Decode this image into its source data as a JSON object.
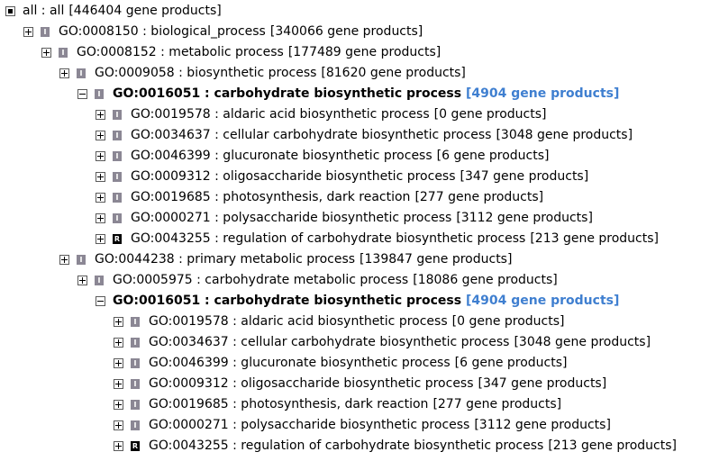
{
  "tree": [
    {
      "depth": 0,
      "toggle": "open",
      "relation": "",
      "label": "all : all",
      "count": "[446404 gene products]",
      "bold": false
    },
    {
      "depth": 1,
      "toggle": "closed",
      "relation": "I",
      "label": "GO:0008150 : biological_process",
      "count": "[340066 gene products]",
      "bold": false
    },
    {
      "depth": 2,
      "toggle": "closed",
      "relation": "I",
      "label": "GO:0008152 : metabolic process",
      "count": "[177489 gene products]",
      "bold": false
    },
    {
      "depth": 3,
      "toggle": "closed",
      "relation": "I",
      "label": "GO:0009058 : biosynthetic process",
      "count": "[81620 gene products]",
      "bold": false
    },
    {
      "depth": 4,
      "toggle": "open",
      "relation": "I",
      "label": "GO:0016051 : carbohydrate biosynthetic process",
      "count": "[4904 gene products]",
      "bold": true
    },
    {
      "depth": 5,
      "toggle": "closed",
      "relation": "I",
      "label": "GO:0019578 : aldaric acid biosynthetic process",
      "count": "[0 gene products]",
      "bold": false
    },
    {
      "depth": 5,
      "toggle": "closed",
      "relation": "I",
      "label": "GO:0034637 : cellular carbohydrate biosynthetic process",
      "count": "[3048 gene products]",
      "bold": false
    },
    {
      "depth": 5,
      "toggle": "closed",
      "relation": "I",
      "label": "GO:0046399 : glucuronate biosynthetic process",
      "count": "[6 gene products]",
      "bold": false
    },
    {
      "depth": 5,
      "toggle": "closed",
      "relation": "I",
      "label": "GO:0009312 : oligosaccharide biosynthetic process",
      "count": "[347 gene products]",
      "bold": false
    },
    {
      "depth": 5,
      "toggle": "closed",
      "relation": "I",
      "label": "GO:0019685 : photosynthesis, dark reaction",
      "count": "[277 gene products]",
      "bold": false
    },
    {
      "depth": 5,
      "toggle": "closed",
      "relation": "I",
      "label": "GO:0000271 : polysaccharide biosynthetic process",
      "count": "[3112 gene products]",
      "bold": false
    },
    {
      "depth": 5,
      "toggle": "closed",
      "relation": "R",
      "label": "GO:0043255 : regulation of carbohydrate biosynthetic process",
      "count": "[213 gene products]",
      "bold": false
    },
    {
      "depth": 3,
      "toggle": "closed",
      "relation": "I",
      "label": "GO:0044238 : primary metabolic process",
      "count": "[139847 gene products]",
      "bold": false
    },
    {
      "depth": 4,
      "toggle": "closed",
      "relation": "I",
      "label": "GO:0005975 : carbohydrate metabolic process",
      "count": "[18086 gene products]",
      "bold": false
    },
    {
      "depth": 5,
      "toggle": "open",
      "relation": "",
      "label": "GO:0016051 : carbohydrate biosynthetic process",
      "count": "[4904 gene products]",
      "bold": true
    },
    {
      "depth": 6,
      "toggle": "closed",
      "relation": "I",
      "label": "GO:0019578 : aldaric acid biosynthetic process",
      "count": "[0 gene products]",
      "bold": false
    },
    {
      "depth": 6,
      "toggle": "closed",
      "relation": "I",
      "label": "GO:0034637 : cellular carbohydrate biosynthetic process",
      "count": "[3048 gene products]",
      "bold": false
    },
    {
      "depth": 6,
      "toggle": "closed",
      "relation": "I",
      "label": "GO:0046399 : glucuronate biosynthetic process",
      "count": "[6 gene products]",
      "bold": false
    },
    {
      "depth": 6,
      "toggle": "closed",
      "relation": "I",
      "label": "GO:0009312 : oligosaccharide biosynthetic process",
      "count": "[347 gene products]",
      "bold": false
    },
    {
      "depth": 6,
      "toggle": "closed",
      "relation": "I",
      "label": "GO:0019685 : photosynthesis, dark reaction",
      "count": "[277 gene products]",
      "bold": false
    },
    {
      "depth": 6,
      "toggle": "closed",
      "relation": "I",
      "label": "GO:0000271 : polysaccharide biosynthetic process",
      "count": "[3112 gene products]",
      "bold": false
    },
    {
      "depth": 6,
      "toggle": "closed",
      "relation": "R",
      "label": "GO:0043255 : regulation of carbohydrate biosynthetic process",
      "count": "[213 gene products]",
      "bold": false
    }
  ],
  "colors": {
    "highlight_count": "#3f7fd0",
    "is_a_badge": "#8b8794",
    "regulates_badge": "#000000"
  },
  "icons": {
    "open": "minus-box-icon",
    "closed": "plus-box-icon",
    "I": "is-a-relation-icon",
    "R": "regulates-relation-icon"
  }
}
